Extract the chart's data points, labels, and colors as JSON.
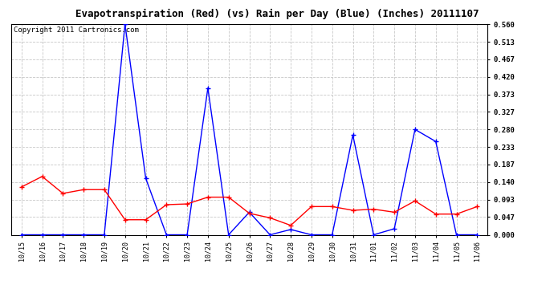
{
  "title": "Evapotranspiration (Red) (vs) Rain per Day (Blue) (Inches) 20111107",
  "copyright": "Copyright 2011 Cartronics.com",
  "x_labels": [
    "10/15",
    "10/16",
    "10/17",
    "10/18",
    "10/19",
    "10/20",
    "10/21",
    "10/22",
    "10/23",
    "10/24",
    "10/25",
    "10/26",
    "10/27",
    "10/28",
    "10/29",
    "10/30",
    "10/31",
    "11/01",
    "11/02",
    "11/03",
    "11/04",
    "11/05",
    "11/06"
  ],
  "blue_rain": [
    0.0,
    0.0,
    0.0,
    0.0,
    0.0,
    0.56,
    0.15,
    0.0,
    0.0,
    0.39,
    0.0,
    0.06,
    0.0,
    0.014,
    0.0,
    0.0,
    0.265,
    0.0,
    0.016,
    0.28,
    0.248,
    0.0,
    0.0
  ],
  "red_et": [
    0.127,
    0.155,
    0.11,
    0.12,
    0.12,
    0.04,
    0.04,
    0.08,
    0.082,
    0.1,
    0.1,
    0.057,
    0.045,
    0.025,
    0.075,
    0.075,
    0.065,
    0.068,
    0.06,
    0.09,
    0.055,
    0.055,
    0.075
  ],
  "ylim": [
    0.0,
    0.56
  ],
  "yticks": [
    0.0,
    0.047,
    0.093,
    0.14,
    0.187,
    0.233,
    0.28,
    0.327,
    0.373,
    0.42,
    0.467,
    0.513,
    0.56
  ],
  "bg_color": "#ffffff",
  "plot_bg": "#ffffff",
  "grid_color": "#c8c8c8",
  "blue_color": "#0000ff",
  "red_color": "#ff0000",
  "title_fontsize": 9,
  "copyright_fontsize": 6.5
}
